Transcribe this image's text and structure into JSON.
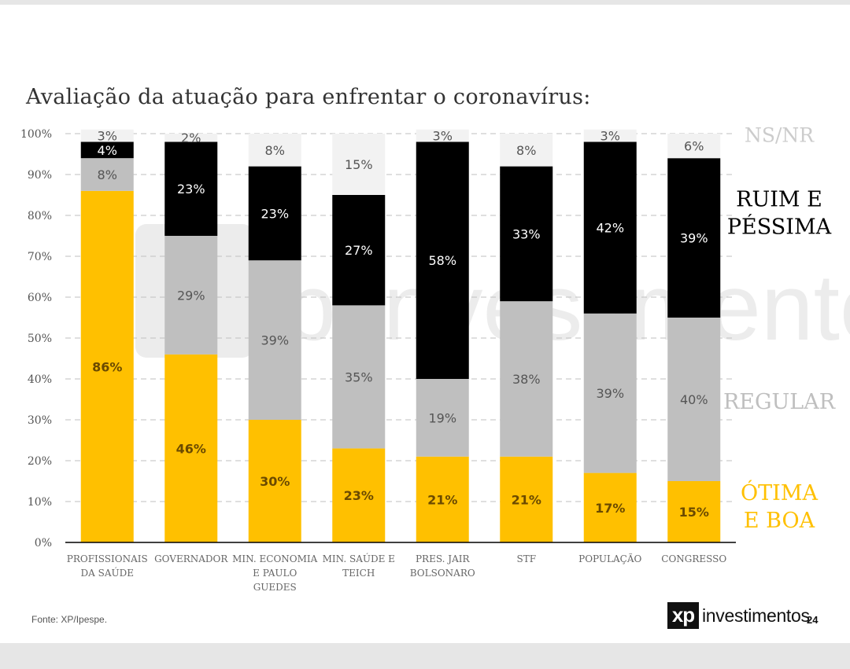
{
  "title": "Avaliação da atuação para enfrentar o coronavírus:",
  "source": "Fonte: XP/Ipespe.",
  "logo": {
    "badge": "xp",
    "word": "investimentos"
  },
  "page_number": "24",
  "watermark_text": "xp investimentos",
  "colors": {
    "otima_boa": "#FFC000",
    "regular": "#BFBFBF",
    "ruim_pessima": "#000000",
    "ns_nr": "#F2F2F2",
    "axis": "#000000",
    "grid": "#BFBFBF"
  },
  "chart_data": {
    "type": "bar",
    "stacked": true,
    "categories": [
      "PROFISSIONAIS DA SAÚDE",
      "GOVERNADOR",
      "MIN. ECONOMIA E PAULO GUEDES",
      "MIN. SAÚDE E TEICH",
      "PRES. JAIR BOLSONARO",
      "STF",
      "POPULAÇÃO",
      "CONGRESSO"
    ],
    "category_lines": [
      [
        "PROFISSIONAIS",
        "DA SAÚDE"
      ],
      [
        "GOVERNADOR"
      ],
      [
        "MIN. ECONOMIA",
        "E PAULO",
        "GUEDES"
      ],
      [
        "MIN. SAÚDE E",
        "TEICH"
      ],
      [
        "PRES. JAIR",
        "BOLSONARO"
      ],
      [
        "STF"
      ],
      [
        "POPULAÇÃO"
      ],
      [
        "CONGRESSO"
      ]
    ],
    "series": [
      {
        "name": "ÓTIMA E BOA",
        "label_lines": [
          "ÓTIMA",
          "E BOA"
        ],
        "color": "#FFC000",
        "values": [
          86,
          46,
          30,
          23,
          21,
          21,
          17,
          15
        ]
      },
      {
        "name": "REGULAR",
        "label_lines": [
          "REGULAR"
        ],
        "color": "#BFBFBF",
        "values": [
          8,
          29,
          39,
          35,
          19,
          38,
          39,
          40
        ]
      },
      {
        "name": "RUIM E PÉSSIMA",
        "label_lines": [
          "RUIM E",
          "PÉSSIMA"
        ],
        "color": "#000000",
        "values": [
          4,
          23,
          23,
          27,
          58,
          33,
          42,
          39
        ]
      },
      {
        "name": "NS/NR",
        "label_lines": [
          "NS/NR"
        ],
        "color": "#F2F2F2",
        "values": [
          3,
          2,
          8,
          15,
          3,
          8,
          3,
          6
        ]
      }
    ],
    "value_suffix": "%",
    "yticks": [
      "0%",
      "10%",
      "20%",
      "30%",
      "40%",
      "50%",
      "60%",
      "70%",
      "80%",
      "90%",
      "100%"
    ],
    "ylim": [
      0,
      100
    ],
    "grid": true,
    "legend": "right"
  }
}
